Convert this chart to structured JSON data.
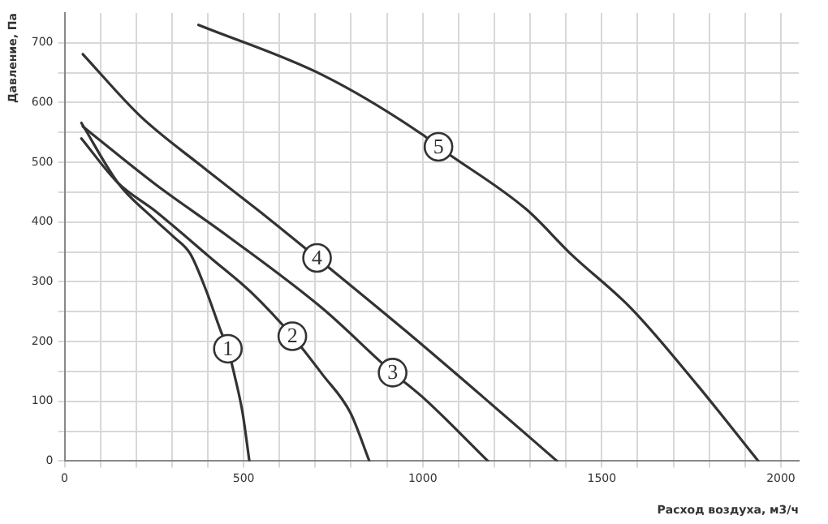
{
  "chart_data": {
    "type": "line",
    "xlabel": "Расход воздуха, м3/ч",
    "ylabel": "Давление, Па",
    "xlim": [
      0,
      2050
    ],
    "ylim": [
      0,
      750
    ],
    "xticks": [
      0,
      {
        "value": 100,
        "label": null
      },
      {
        "value": 200,
        "label": null
      },
      {
        "value": 300,
        "label": null
      },
      {
        "value": 400,
        "label": null
      },
      500,
      {
        "value": 600,
        "label": null
      },
      {
        "value": 700,
        "label": null
      },
      {
        "value": 800,
        "label": null
      },
      {
        "value": 900,
        "label": null
      },
      1000,
      {
        "value": 1100,
        "label": null
      },
      {
        "value": 1200,
        "label": null
      },
      {
        "value": 1300,
        "label": null
      },
      {
        "value": 1400,
        "label": null
      },
      1500,
      {
        "value": 1600,
        "label": null
      },
      {
        "value": 1700,
        "label": null
      },
      {
        "value": 1800,
        "label": null
      },
      {
        "value": 1900,
        "label": null
      },
      2000
    ],
    "yticks": [
      0,
      {
        "value": 50,
        "label": null
      },
      100,
      {
        "value": 150,
        "label": null
      },
      200,
      {
        "value": 250,
        "label": null
      },
      300,
      {
        "value": 350,
        "label": null
      },
      400,
      {
        "value": 450,
        "label": null
      },
      500,
      {
        "value": 550,
        "label": null
      },
      600,
      {
        "value": 650,
        "label": null
      },
      700
    ],
    "grid": true,
    "marker": "none",
    "line_style": "solid",
    "series": [
      {
        "color": "#333333",
        "x": [
          47,
          150,
          250,
          305,
          351,
          397,
          436,
          456,
          474,
          497,
          516
        ],
        "values": [
          566,
          465,
          405,
          375,
          347,
          283,
          218,
          188,
          145,
          81,
          0
        ]
      },
      {
        "color": "#333333",
        "x": [
          47,
          150,
          250,
          412,
          520,
          636,
          720,
          798,
          851
        ],
        "values": [
          540,
          465,
          420,
          338,
          283,
          209,
          145,
          81,
          0
        ]
      },
      {
        "color": "#333333",
        "x": [
          51,
          250,
          459,
          721,
          916,
          998,
          1182
        ],
        "values": [
          560,
          465,
          375,
          255,
          148,
          108,
          0
        ]
      },
      {
        "color": "#333333",
        "x": [
          51,
          212,
          382,
          540,
          705,
          952,
          1167,
          1375
        ],
        "values": [
          681,
          577,
          494,
          420,
          340,
          218,
          108,
          0
        ]
      },
      {
        "color": "#333333",
        "x": [
          374,
          721,
          998,
          1044,
          1290,
          1413,
          1583,
          1767,
          1937
        ],
        "values": [
          730,
          646,
          547,
          526,
          421,
          347,
          255,
          127,
          0
        ]
      }
    ],
    "annotations": [
      {
        "text": "1",
        "x": 456,
        "y": 188
      },
      {
        "text": "2",
        "x": 636,
        "y": 209
      },
      {
        "text": "3",
        "x": 916,
        "y": 148
      },
      {
        "text": "4",
        "x": 705,
        "y": 340
      },
      {
        "text": "5",
        "x": 1044,
        "y": 526
      }
    ]
  }
}
